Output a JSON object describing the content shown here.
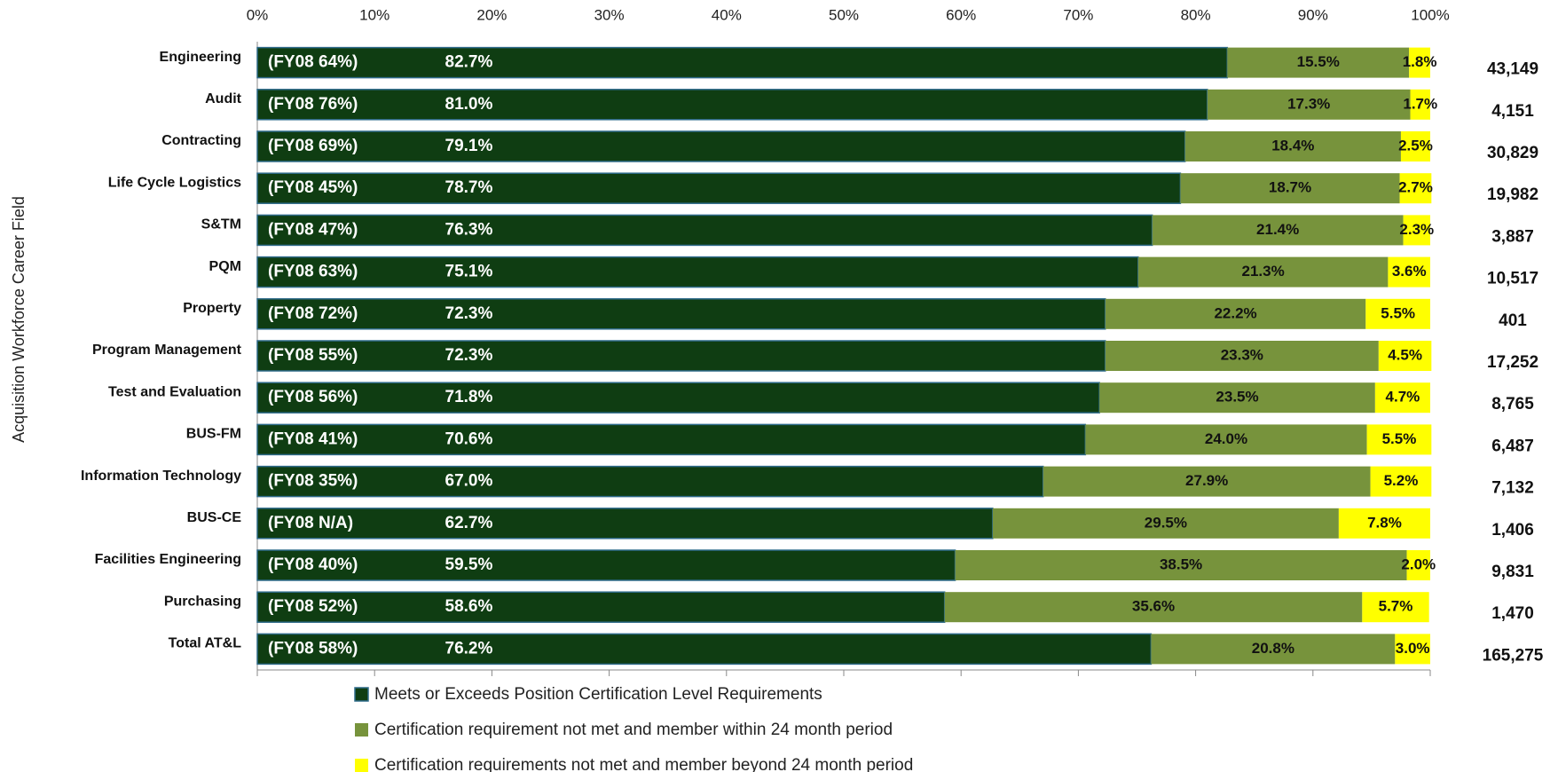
{
  "chart_data": {
    "type": "stacked-barh",
    "y_label": "Acquisition Workforce Career Field",
    "categories": [
      "Engineering",
      "Audit",
      "Contracting",
      "Life Cycle Logistics",
      "S&TM",
      "PQM",
      "Property",
      "Program Management",
      "Test and Evaluation",
      "BUS-FM",
      "Information Technology",
      "BUS-CE",
      "Facilities Engineering",
      "Purchasing",
      "Total AT&L"
    ],
    "series": [
      {
        "name": "Meets or Exceeds Position Certification Level Requirements",
        "color": "#0f3d12",
        "values": [
          82.7,
          81.0,
          79.1,
          78.7,
          76.3,
          75.1,
          72.3,
          72.3,
          71.8,
          70.6,
          67.0,
          62.7,
          59.5,
          58.6,
          76.2
        ],
        "value_labels": [
          "82.7%",
          "81.0%",
          "79.1%",
          "78.7%",
          "76.3%",
          "75.1%",
          "72.3%",
          "72.3%",
          "71.8%",
          "70.6%",
          "67.0%",
          "62.7%",
          "59.5%",
          "58.6%",
          "76.2%"
        ]
      },
      {
        "name": "Certification requirement not met and member within 24 month period",
        "color": "#77933c",
        "values": [
          15.5,
          17.3,
          18.4,
          18.7,
          21.4,
          21.3,
          22.2,
          23.3,
          23.5,
          24.0,
          27.9,
          29.5,
          38.5,
          35.6,
          20.8
        ],
        "value_labels": [
          "15.5%",
          "17.3%",
          "18.4%",
          "18.7%",
          "21.4%",
          "21.3%",
          "22.2%",
          "23.3%",
          "23.5%",
          "24.0%",
          "27.9%",
          "29.5%",
          "38.5%",
          "35.6%",
          "20.8%"
        ]
      },
      {
        "name": "Certification requirements not met and member beyond 24 month period",
        "color": "#ffff00",
        "values": [
          1.8,
          1.7,
          2.5,
          2.7,
          2.3,
          3.6,
          5.5,
          4.5,
          4.7,
          5.5,
          5.2,
          7.8,
          2.0,
          5.7,
          3.0
        ],
        "value_labels": [
          "1.8%",
          "1.7%",
          "2.5%",
          "2.7%",
          "2.3%",
          "3.6%",
          "5.5%",
          "4.5%",
          "4.7%",
          "5.5%",
          "5.2%",
          "7.8%",
          "2.0%",
          "5.7%",
          "3.0%"
        ]
      }
    ],
    "fy08_labels": [
      "(FY08 64%)",
      "(FY08 76%)",
      "(FY08 69%)",
      "(FY08 45%)",
      "(FY08 47%)",
      "(FY08 63%)",
      "(FY08 72%)",
      "(FY08 55%)",
      "(FY08 56%)",
      "(FY08 41%)",
      "(FY08 35%)",
      "(FY08 N/A)",
      "(FY08 40%)",
      "(FY08 52%)",
      "(FY08 58%)"
    ],
    "counts": [
      "43,149",
      "4,151",
      "30,829",
      "19,982",
      "3,887",
      "10,517",
      "401",
      "17,252",
      "8,765",
      "6,487",
      "7,132",
      "1,406",
      "9,831",
      "1,470",
      "165,275"
    ],
    "xlim": [
      0,
      100
    ],
    "xticks": [
      {
        "value": 0,
        "label": "0%"
      },
      {
        "value": 10,
        "label": "10%"
      },
      {
        "value": 20,
        "label": "20%"
      },
      {
        "value": 30,
        "label": "30%"
      },
      {
        "value": 40,
        "label": "40%"
      },
      {
        "value": 50,
        "label": "50%"
      },
      {
        "value": 60,
        "label": "60%"
      },
      {
        "value": 70,
        "label": "70%"
      },
      {
        "value": 80,
        "label": "80%"
      },
      {
        "value": 90,
        "label": "90%"
      },
      {
        "value": 100,
        "label": "100%"
      }
    ],
    "legend": "bottom"
  }
}
